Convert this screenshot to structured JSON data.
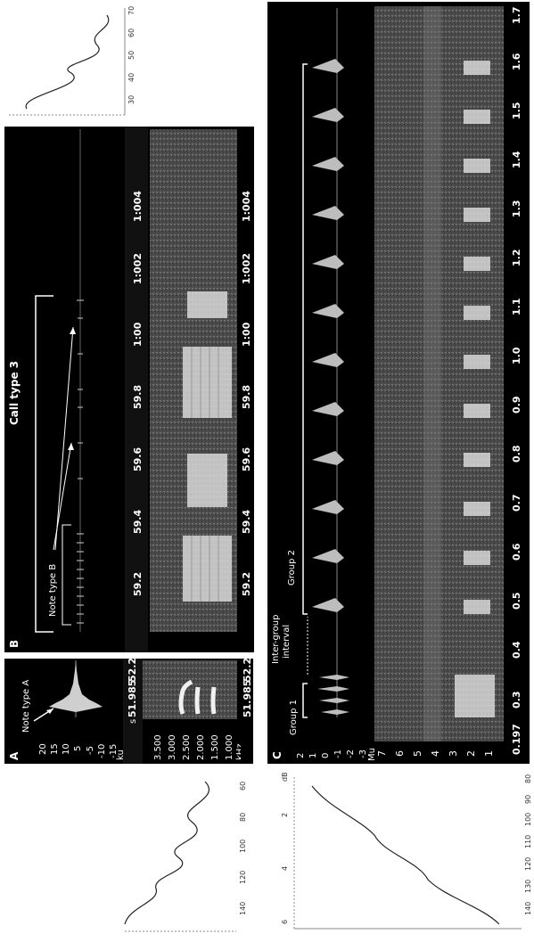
{
  "panelA": {
    "letter": "A",
    "note_label": "Note type A",
    "wave_unit": "ku",
    "wave_ticks": [
      "20",
      "15",
      "10",
      "5",
      "-5",
      "-10",
      "-15"
    ],
    "spec_unit": "kHz",
    "spec_ticks": [
      "3.500",
      "3.000",
      "2.500",
      "2.000",
      "1.500",
      "1.000"
    ],
    "time_unit": "s",
    "time_ticks": [
      "51.985",
      "52.2"
    ]
  },
  "panelB": {
    "letter": "B",
    "title": "Call type 3",
    "note_label": "Note type B",
    "time_ticks": [
      "59.2",
      "59.4",
      "59.6",
      "59.8",
      "1:00",
      "1:002",
      "1:004"
    ],
    "time_ticks_right": [
      "59.2",
      "59.4",
      "59.6",
      "59.8",
      "1:00",
      "1:002",
      "1:004"
    ]
  },
  "panelC": {
    "letter": "C",
    "group1_label": "Group 1",
    "interval_label_1": "Inter-group",
    "interval_label_2": "interval",
    "group2_label": "Group 2",
    "wave_unit": "Mu",
    "wave_ticks": [
      "2",
      "1",
      "0",
      "-1",
      "-2",
      "-3"
    ],
    "spec_ticks": [
      "7",
      "6",
      "5",
      "4",
      "3",
      "2",
      "1"
    ],
    "time_unit": "s",
    "time_ticks": [
      "0.197",
      "0.3",
      "0.4",
      "0.5",
      "0.6",
      "0.7",
      "0.8",
      "0.9",
      "1.0",
      "1.1",
      "1.2",
      "1.3",
      "1.4",
      "1.5",
      "1.6",
      "1.7"
    ]
  },
  "side_plot_top": {
    "ticks": [
      "70",
      "60",
      "50",
      "40",
      "30"
    ]
  },
  "side_plot_left": {
    "ticks": [
      "140",
      "120",
      "100",
      "80",
      "60"
    ]
  },
  "side_plot_bottom": {
    "ticks": [
      "140",
      "130",
      "120",
      "110",
      "100",
      "90",
      "80"
    ],
    "top_ticks": [
      "6",
      "4",
      "2"
    ],
    "unit": "dB"
  }
}
